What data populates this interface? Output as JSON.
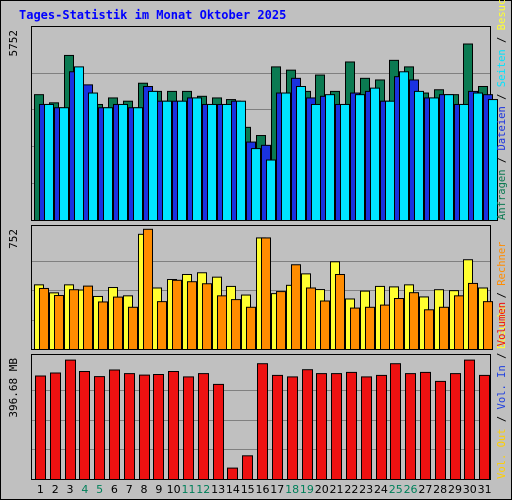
{
  "title": "Tages-Statistik im Monat Oktober 2025",
  "colors": {
    "background": "#c0c0c0",
    "frame": "#000000",
    "title": "#0000ff",
    "anfragen": "#0b7a52",
    "dateien": "#1a32e0",
    "seiten": "#00e4ff",
    "besuche": "#ffff30",
    "rechner": "#ff8c00",
    "vol_in": "#2040e0",
    "vol_out": "#ffd000",
    "volumen": "#ee1111",
    "weekend": "#00805a",
    "weekday": "#000000"
  },
  "axis": {
    "days": [
      "1",
      "2",
      "3",
      "4",
      "5",
      "6",
      "7",
      "8",
      "9",
      "10",
      "11",
      "12",
      "13",
      "14",
      "15",
      "16",
      "17",
      "18",
      "19",
      "20",
      "21",
      "22",
      "23",
      "24",
      "25",
      "26",
      "27",
      "28",
      "29",
      "30",
      "31"
    ],
    "weekend_days": [
      "4",
      "5",
      "11",
      "12",
      "18",
      "19",
      "25",
      "26"
    ]
  },
  "right_labels": {
    "top": [
      {
        "text": "Anfragen",
        "color_key": "anfragen"
      },
      {
        "text": " / ",
        "color_key": "weekday"
      },
      {
        "text": "Dateien",
        "color_key": "dateien"
      },
      {
        "text": " / ",
        "color_key": "weekday"
      },
      {
        "text": "Seiten",
        "color_key": "seiten"
      },
      {
        "text": " / ",
        "color_key": "weekday"
      },
      {
        "text": "Besuche",
        "color_key": "besuche"
      }
    ],
    "middle": [
      {
        "text": "Besuche",
        "color_key": "besuche"
      },
      {
        "text": " / ",
        "color_key": "weekday"
      },
      {
        "text": "Rechner",
        "color_key": "rechner"
      }
    ],
    "bottom": [
      {
        "text": "Vol. Out",
        "color_key": "vol_out"
      },
      {
        "text": " / ",
        "color_key": "weekday"
      },
      {
        "text": "Vol. In",
        "color_key": "vol_in"
      },
      {
        "text": " / ",
        "color_key": "weekday"
      },
      {
        "text": "Volumen",
        "color_key": "volumen"
      }
    ]
  },
  "chart_data": [
    {
      "type": "bar",
      "ymax_label": "5752",
      "ylim": [
        0,
        5752
      ],
      "grid": true,
      "series": [
        {
          "name": "Anfragen",
          "values": [
            3850,
            3600,
            5050,
            3850,
            3550,
            3750,
            3650,
            4200,
            3950,
            3950,
            3950,
            3800,
            3750,
            3700,
            2850,
            2600,
            4700,
            4600,
            3950,
            4450,
            3950,
            4850,
            4350,
            4300,
            4900,
            4700,
            3900,
            4000,
            3850,
            5400,
            4100
          ]
        },
        {
          "name": "Dateien",
          "values": [
            3550,
            3450,
            4550,
            4150,
            3450,
            3550,
            3450,
            4100,
            3650,
            3650,
            3750,
            3550,
            3550,
            3650,
            2400,
            2300,
            3900,
            4350,
            3750,
            3800,
            3550,
            3900,
            3950,
            3650,
            4400,
            4300,
            3750,
            3850,
            3550,
            3950,
            3850
          ]
        },
        {
          "name": "Seiten",
          "values": [
            3550,
            3450,
            4700,
            3900,
            3450,
            3550,
            3450,
            3950,
            3650,
            3650,
            3750,
            3550,
            3550,
            3650,
            2200,
            1850,
            3900,
            4100,
            3550,
            3850,
            3550,
            3850,
            4050,
            3650,
            4550,
            3950,
            3750,
            3850,
            3550,
            3900,
            3700
          ]
        }
      ]
    },
    {
      "type": "bar",
      "ymax_label": "752",
      "ylim": [
        0,
        752
      ],
      "grid": true,
      "series": [
        {
          "name": "Besuche",
          "values": [
            412,
            361,
            412,
            379,
            338,
            395,
            342,
            734,
            392,
            446,
            478,
            489,
            461,
            402,
            347,
            711,
            356,
            409,
            482,
            382,
            559,
            322,
            372,
            402,
            399,
            412,
            335,
            381,
            375,
            572,
            392
          ]
        },
        {
          "name": "Rechner",
          "values": [
            389,
            344,
            381,
            404,
            303,
            334,
            269,
            766,
            305,
            441,
            432,
            419,
            342,
            318,
            269,
            711,
            369,
            540,
            392,
            309,
            478,
            264,
            269,
            283,
            325,
            362,
            253,
            269,
            342,
            421,
            305
          ]
        }
      ]
    },
    {
      "type": "bar",
      "ymax_label": "396.68 MB",
      "ylim": [
        0,
        396.68
      ],
      "grid": true,
      "series": [
        {
          "name": "Volumen",
          "values": [
            345,
            355,
            398,
            360,
            343,
            365,
            353,
            348,
            350,
            360,
            342,
            353,
            317,
            38,
            79,
            386,
            347,
            342,
            366,
            353,
            353,
            357,
            342,
            347,
            386,
            353,
            357,
            327,
            353,
            398,
            347
          ]
        }
      ]
    }
  ]
}
